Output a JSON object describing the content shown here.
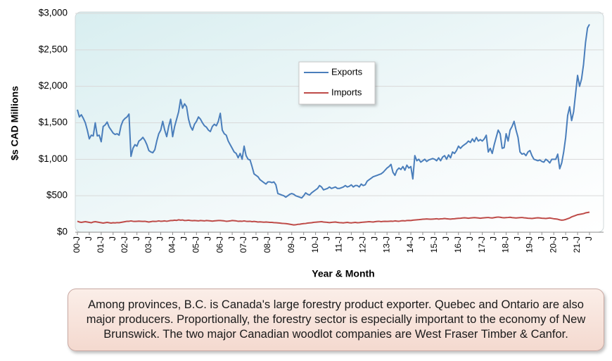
{
  "chart_data": {
    "type": "line",
    "y_label": "$s CAD Millions",
    "x_label": "Year & Month",
    "annotation": "Among provinces, B.C. is Canada's large forestry product exporter. Quebec and Ontario are also major producers. Proportionally, the forestry sector is especially important to the economy of New Brunswick. The two major Canadian woodlot companies are West Fraser Timber & Canfor.",
    "ylim": [
      0,
      3000
    ],
    "yticks": [
      {
        "value": 0,
        "label": "$0"
      },
      {
        "value": 500,
        "label": "$500"
      },
      {
        "value": 1000,
        "label": "$1,000"
      },
      {
        "value": 1500,
        "label": "$1,500"
      },
      {
        "value": 2000,
        "label": "$2,000"
      },
      {
        "value": 2500,
        "label": "$2,500"
      },
      {
        "value": 3000,
        "label": "$3,000"
      }
    ],
    "grid": true,
    "legend": "upper-center",
    "categories": [
      "00-J",
      null,
      null,
      null,
      null,
      null,
      "J",
      null,
      null,
      null,
      null,
      null,
      "01-J",
      null,
      null,
      null,
      null,
      null,
      "J",
      null,
      null,
      null,
      null,
      null,
      "02-J",
      null,
      null,
      null,
      null,
      null,
      "J",
      null,
      null,
      null,
      null,
      null,
      "03-J",
      null,
      null,
      null,
      null,
      null,
      "J",
      null,
      null,
      null,
      null,
      null,
      "04-J",
      null,
      null,
      null,
      null,
      null,
      "J",
      null,
      null,
      null,
      null,
      null,
      "05-J",
      null,
      null,
      null,
      null,
      null,
      "J",
      null,
      null,
      null,
      null,
      null,
      "06-J",
      null,
      null,
      null,
      null,
      null,
      "J",
      null,
      null,
      null,
      null,
      null,
      "07-J",
      null,
      null,
      null,
      null,
      null,
      "J",
      null,
      null,
      null,
      null,
      null,
      "08-J",
      null,
      null,
      null,
      null,
      null,
      "J",
      null,
      null,
      null,
      null,
      null,
      "09-J",
      null,
      null,
      null,
      null,
      null,
      "J",
      null,
      null,
      null,
      null,
      null,
      "10-J",
      null,
      null,
      null,
      null,
      null,
      "J",
      null,
      null,
      null,
      null,
      null,
      "11-J",
      null,
      null,
      null,
      null,
      null,
      "J",
      null,
      null,
      null,
      null,
      null,
      "12-J",
      null,
      null,
      null,
      null,
      null,
      "J",
      null,
      null,
      null,
      null,
      null,
      "13-J",
      null,
      null,
      null,
      null,
      null,
      "J",
      null,
      null,
      null,
      null,
      null,
      "14-J",
      null,
      null,
      null,
      null,
      null,
      "J",
      null,
      null,
      null,
      null,
      null,
      "15-J",
      null,
      null,
      null,
      null,
      null,
      "J",
      null,
      null,
      null,
      null,
      null,
      "16-J",
      null,
      null,
      null,
      null,
      null,
      "J",
      null,
      null,
      null,
      null,
      null,
      "17-J",
      null,
      null,
      null,
      null,
      null,
      "J",
      null,
      null,
      null,
      null,
      null,
      "18-J",
      null,
      null,
      null,
      null,
      null,
      "J",
      null,
      null,
      null,
      null,
      null,
      "19-J",
      null,
      null,
      null,
      null,
      null,
      "J",
      null,
      null,
      null,
      null,
      null,
      "20-J",
      null,
      null,
      null,
      null,
      null,
      "J",
      null,
      null,
      null,
      null,
      null,
      "21-J",
      null,
      null,
      null,
      null,
      null,
      "J"
    ],
    "series": [
      {
        "name": "Exports",
        "color": "#4a7ebb",
        "values": [
          1680,
          1580,
          1610,
          1560,
          1500,
          1400,
          1280,
          1330,
          1320,
          1500,
          1320,
          1330,
          1240,
          1450,
          1470,
          1510,
          1440,
          1400,
          1360,
          1340,
          1350,
          1330,
          1460,
          1530,
          1560,
          1580,
          1620,
          1040,
          1150,
          1200,
          1180,
          1250,
          1270,
          1300,
          1260,
          1200,
          1120,
          1100,
          1090,
          1130,
          1250,
          1350,
          1400,
          1520,
          1400,
          1310,
          1450,
          1550,
          1310,
          1450,
          1550,
          1650,
          1820,
          1700,
          1760,
          1720,
          1550,
          1450,
          1400,
          1480,
          1520,
          1580,
          1550,
          1500,
          1460,
          1440,
          1400,
          1380,
          1450,
          1480,
          1460,
          1520,
          1630,
          1400,
          1350,
          1330,
          1250,
          1200,
          1150,
          1100,
          1080,
          1020,
          1080,
          1000,
          1180,
          1050,
          1000,
          990,
          900,
          800,
          780,
          760,
          720,
          700,
          680,
          660,
          690,
          690,
          680,
          690,
          650,
          530,
          520,
          510,
          500,
          480,
          500,
          520,
          530,
          520,
          500,
          490,
          480,
          470,
          500,
          540,
          520,
          510,
          540,
          560,
          580,
          600,
          640,
          620,
          580,
          590,
          600,
          620,
          600,
          610,
          620,
          600,
          600,
          610,
          620,
          640,
          620,
          630,
          650,
          620,
          640,
          640,
          620,
          660,
          640,
          650,
          700,
          720,
          740,
          760,
          770,
          780,
          790,
          800,
          820,
          850,
          880,
          900,
          930,
          820,
          780,
          850,
          880,
          860,
          900,
          850,
          920,
          880,
          900,
          730,
          1050,
          980,
          1000,
          960,
          980,
          1000,
          970,
          990,
          1000,
          1010,
          1000,
          980,
          1020,
          980,
          1030,
          1050,
          1000,
          1060,
          1020,
          1100,
          1080,
          1120,
          1180,
          1150,
          1180,
          1200,
          1220,
          1250,
          1230,
          1280,
          1240,
          1300,
          1250,
          1270,
          1250,
          1280,
          1330,
          1100,
          1150,
          1080,
          1200,
          1300,
          1400,
          1350,
          1150,
          1160,
          1350,
          1250,
          1400,
          1450,
          1520,
          1400,
          1300,
          1100,
          1070,
          1080,
          1050,
          1100,
          1120,
          1050,
          1000,
          990,
          980,
          990,
          970,
          960,
          1000,
          980,
          950,
          1000,
          1000,
          1000,
          1070,
          870,
          950,
          1100,
          1300,
          1600,
          1720,
          1530,
          1650,
          1900,
          2150,
          2000,
          2100,
          2300,
          2600,
          2800,
          2850
        ]
      },
      {
        "name": "Imports",
        "color": "#be4b48",
        "values": [
          150,
          140,
          135,
          140,
          145,
          140,
          135,
          130,
          140,
          145,
          140,
          135,
          130,
          125,
          130,
          135,
          130,
          125,
          130,
          128,
          132,
          130,
          135,
          140,
          145,
          150,
          150,
          155,
          150,
          148,
          150,
          152,
          150,
          148,
          150,
          145,
          140,
          145,
          150,
          148,
          150,
          155,
          150,
          152,
          155,
          150,
          155,
          160,
          160,
          165,
          162,
          170,
          165,
          168,
          160,
          162,
          165,
          160,
          158,
          160,
          158,
          155,
          160,
          158,
          155,
          160,
          158,
          155,
          152,
          155,
          158,
          160,
          160,
          158,
          155,
          150,
          152,
          155,
          160,
          158,
          155,
          150,
          152,
          150,
          155,
          150,
          148,
          150,
          145,
          148,
          145,
          140,
          142,
          140,
          138,
          140,
          138,
          135,
          135,
          132,
          130,
          128,
          125,
          122,
          120,
          118,
          115,
          110,
          105,
          100,
          102,
          108,
          110,
          115,
          118,
          120,
          125,
          128,
          130,
          135,
          138,
          140,
          142,
          145,
          140,
          138,
          135,
          132,
          135,
          138,
          140,
          135,
          132,
          130,
          128,
          132,
          135,
          130,
          128,
          132,
          135,
          130,
          132,
          135,
          138,
          140,
          142,
          145,
          142,
          140,
          145,
          148,
          150,
          145,
          148,
          150,
          148,
          150,
          152,
          150,
          155,
          152,
          150,
          155,
          158,
          155,
          160,
          162,
          160,
          165,
          168,
          170,
          172,
          175,
          178,
          180,
          182,
          180,
          178,
          180,
          182,
          185,
          180,
          183,
          185,
          188,
          185,
          182,
          180,
          183,
          185,
          188,
          190,
          192,
          195,
          198,
          195,
          192,
          195,
          198,
          200,
          198,
          195,
          192,
          195,
          198,
          200,
          202,
          198,
          195,
          200,
          205,
          208,
          205,
          200,
          198,
          200,
          202,
          205,
          200,
          198,
          195,
          198,
          200,
          202,
          198,
          195,
          192,
          190,
          188,
          192,
          195,
          198,
          195,
          192,
          190,
          188,
          192,
          195,
          190,
          185,
          182,
          178,
          170,
          165,
          168,
          175,
          185,
          195,
          210,
          220,
          230,
          240,
          245,
          250,
          255,
          265,
          270,
          275
        ]
      }
    ]
  }
}
